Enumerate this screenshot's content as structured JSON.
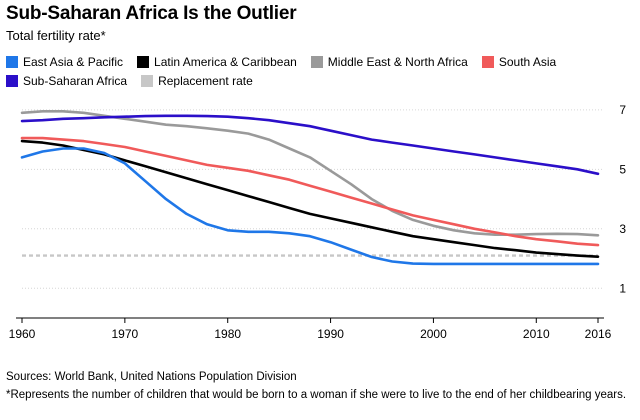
{
  "chart_data": {
    "type": "line",
    "title": "Sub-Saharan Africa Is the Outlier",
    "subtitle": "Total fertility rate*",
    "xlabel": "",
    "ylabel": "",
    "xlim": [
      1960,
      2016
    ],
    "ylim": [
      0,
      7.6
    ],
    "x_ticks": [
      "1960",
      "1970",
      "1980",
      "1990",
      "2000",
      "2010",
      "2016"
    ],
    "y_ticks": [
      "1",
      "3",
      "5",
      "7"
    ],
    "grid": true,
    "legend_position": "top",
    "x": [
      1960,
      1962,
      1964,
      1966,
      1968,
      1970,
      1972,
      1974,
      1976,
      1978,
      1980,
      1982,
      1984,
      1986,
      1988,
      1990,
      1992,
      1994,
      1996,
      1998,
      2000,
      2002,
      2004,
      2006,
      2008,
      2010,
      2012,
      2014,
      2016
    ],
    "series": [
      {
        "name": "East Asia & Pacific",
        "color": "#1f77e8",
        "values": [
          5.4,
          5.6,
          5.7,
          5.7,
          5.55,
          5.2,
          4.6,
          4.0,
          3.5,
          3.15,
          2.95,
          2.9,
          2.9,
          2.85,
          2.75,
          2.55,
          2.3,
          2.05,
          1.9,
          1.83,
          1.82,
          1.82,
          1.82,
          1.82,
          1.82,
          1.82,
          1.82,
          1.82,
          1.82
        ]
      },
      {
        "name": "Latin America & Caribbean",
        "color": "#000000",
        "values": [
          5.95,
          5.9,
          5.8,
          5.65,
          5.5,
          5.3,
          5.1,
          4.9,
          4.7,
          4.5,
          4.3,
          4.1,
          3.9,
          3.7,
          3.5,
          3.35,
          3.2,
          3.05,
          2.9,
          2.75,
          2.65,
          2.55,
          2.45,
          2.35,
          2.28,
          2.2,
          2.15,
          2.1,
          2.06
        ]
      },
      {
        "name": "Middle East & North Africa",
        "color": "#9a9a9a",
        "values": [
          6.9,
          6.95,
          6.95,
          6.9,
          6.8,
          6.7,
          6.6,
          6.5,
          6.45,
          6.38,
          6.3,
          6.2,
          6.0,
          5.7,
          5.4,
          4.95,
          4.5,
          4.0,
          3.6,
          3.3,
          3.1,
          2.95,
          2.85,
          2.8,
          2.8,
          2.82,
          2.83,
          2.82,
          2.78
        ]
      },
      {
        "name": "South Asia",
        "color": "#f05a5a",
        "values": [
          6.05,
          6.05,
          6.0,
          5.95,
          5.85,
          5.75,
          5.6,
          5.45,
          5.3,
          5.15,
          5.05,
          4.95,
          4.8,
          4.65,
          4.45,
          4.25,
          4.05,
          3.85,
          3.65,
          3.45,
          3.3,
          3.15,
          3.0,
          2.88,
          2.75,
          2.65,
          2.58,
          2.5,
          2.45
        ]
      },
      {
        "name": "Sub-Saharan Africa",
        "color": "#2b0fc9",
        "values": [
          6.62,
          6.65,
          6.7,
          6.72,
          6.75,
          6.77,
          6.79,
          6.8,
          6.8,
          6.79,
          6.77,
          6.72,
          6.65,
          6.55,
          6.45,
          6.3,
          6.15,
          6.0,
          5.9,
          5.8,
          5.7,
          5.6,
          5.5,
          5.4,
          5.3,
          5.2,
          5.1,
          5.0,
          4.85
        ]
      },
      {
        "name": "Replacement rate",
        "color": "#c7c7c7",
        "dashed": true,
        "values": [
          2.1,
          2.1,
          2.1,
          2.1,
          2.1,
          2.1,
          2.1,
          2.1,
          2.1,
          2.1,
          2.1,
          2.1,
          2.1,
          2.1,
          2.1,
          2.1,
          2.1,
          2.1,
          2.1,
          2.1,
          2.1,
          2.1,
          2.1,
          2.1,
          2.1,
          2.1,
          2.1,
          2.1,
          2.1
        ]
      }
    ]
  },
  "legend": [
    {
      "label": "East Asia & Pacific",
      "color": "#1f77e8"
    },
    {
      "label": "Latin America & Caribbean",
      "color": "#000000"
    },
    {
      "label": "Middle East & North Africa",
      "color": "#9a9a9a"
    },
    {
      "label": "South Asia",
      "color": "#f05a5a"
    },
    {
      "label": "Sub-Saharan Africa",
      "color": "#2b0fc9"
    },
    {
      "label": "Replacement rate",
      "color": "#c7c7c7"
    }
  ],
  "footer": {
    "sources": "Sources: World Bank, United Nations Population Division",
    "note": "*Represents the number of children that would be born to a woman if she were to live to the end of her childbearing years."
  }
}
